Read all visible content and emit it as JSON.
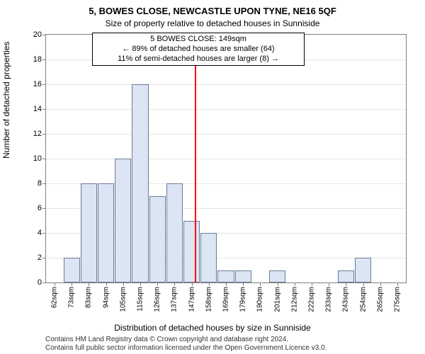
{
  "titles": {
    "main": "5, BOWES CLOSE, NEWCASTLE UPON TYNE, NE16 5QF",
    "sub": "Size of property relative to detached houses in Sunniside"
  },
  "annotation": {
    "line1": "5 BOWES CLOSE: 149sqm",
    "line2": "← 89% of detached houses are smaller (64)",
    "line3": "11% of semi-detached houses are larger (8) →"
  },
  "ylabel": "Number of detached properties",
  "xlabel": "Distribution of detached houses by size in Sunniside",
  "footnote": {
    "l1": "Contains HM Land Registry data © Crown copyright and database right 2024.",
    "l2": "Contains full public sector information licensed under the Open Government Licence v3.0."
  },
  "chart": {
    "type": "histogram",
    "x_start": 57,
    "x_end": 280,
    "ylim": [
      0,
      20
    ],
    "ytick_step": 2,
    "grid_color": "#e6e6e6",
    "border_color": "#808080",
    "background_color": "#ffffff",
    "bar_color": "#dbe5f3",
    "bar_border": "#6b7a99",
    "bin_width": 10.5,
    "refline_x": 149,
    "refline_color": "#ff0000",
    "xtick_labels": [
      "62sqm",
      "73sqm",
      "83sqm",
      "94sqm",
      "105sqm",
      "115sqm",
      "126sqm",
      "137sqm",
      "147sqm",
      "158sqm",
      "169sqm",
      "179sqm",
      "190sqm",
      "201sqm",
      "212sqm",
      "222sqm",
      "233sqm",
      "243sqm",
      "254sqm",
      "265sqm",
      "275sqm"
    ],
    "values": [
      0,
      2,
      8,
      8,
      10,
      16,
      7,
      8,
      5,
      4,
      1,
      1,
      0,
      1,
      0,
      0,
      0,
      1,
      2,
      0,
      0
    ]
  }
}
